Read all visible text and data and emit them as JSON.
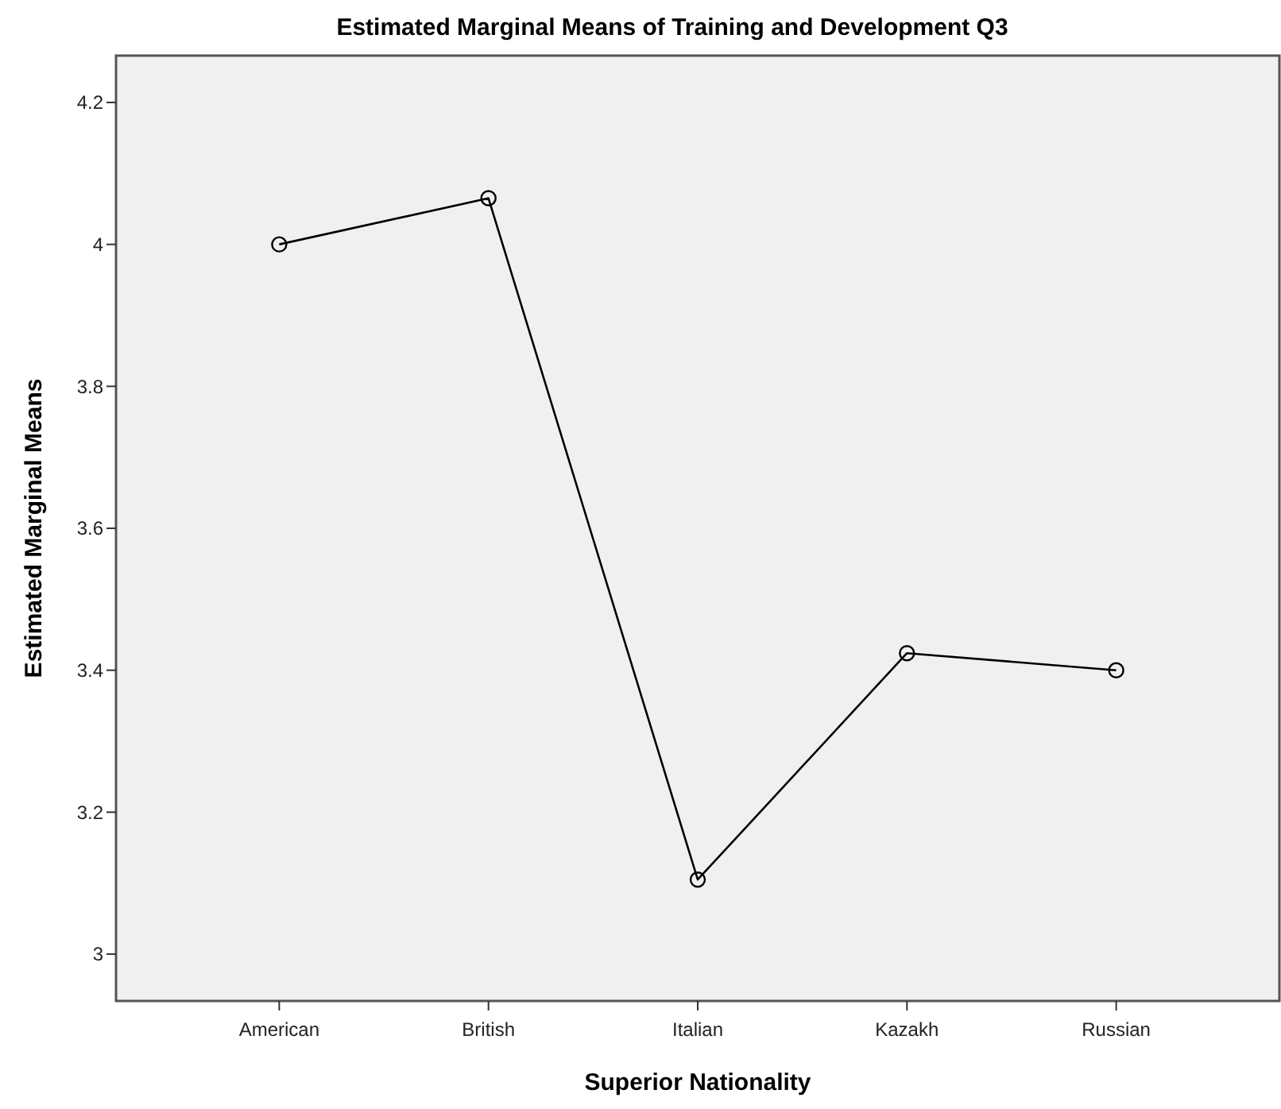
{
  "chart_data": {
    "type": "line",
    "title": "Estimated Marginal Means of Training and Development Q3",
    "xlabel": "Superior Nationality",
    "ylabel": "Estimated Marginal Means",
    "categories": [
      "American",
      "British",
      "Italian",
      "Kazakh",
      "Russian"
    ],
    "series": [
      {
        "color": "#000000",
        "values": [
          4.0,
          4.065,
          3.105,
          3.424,
          3.4
        ]
      }
    ],
    "ylim": [
      2.934,
      4.266
    ],
    "yticks": [
      3,
      3.2,
      3.4,
      3.6,
      3.8,
      4,
      4.2
    ],
    "grid": false,
    "marker": "circle",
    "line_style": "solid"
  }
}
